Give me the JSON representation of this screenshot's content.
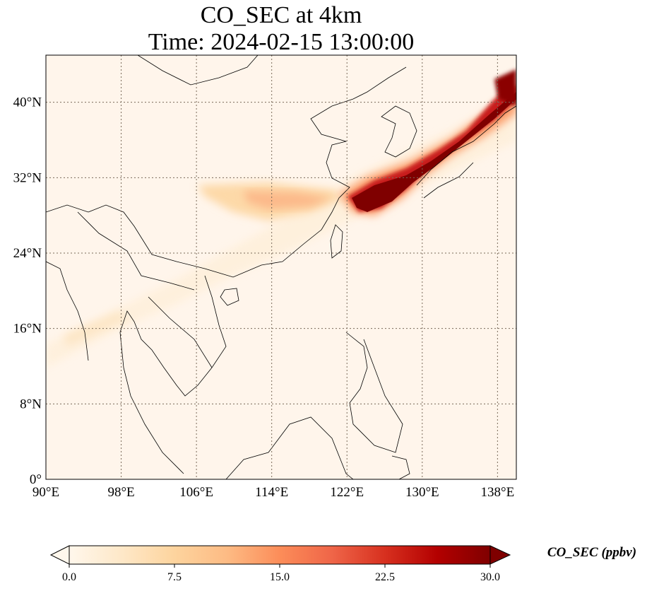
{
  "title": {
    "line1": "CO_SEC at 4km",
    "line2": "Time: 2024-02-15 13:00:00"
  },
  "map": {
    "lon_range": [
      90,
      140
    ],
    "lat_range": [
      0,
      45
    ],
    "lon_ticks": [
      90,
      98,
      106,
      114,
      122,
      130,
      138
    ],
    "lon_tick_labels": [
      "90°E",
      "98°E",
      "106°E",
      "114°E",
      "122°E",
      "130°E",
      "138°E"
    ],
    "lat_ticks": [
      0,
      8,
      16,
      24,
      32,
      40
    ],
    "lat_tick_labels": [
      "0°",
      "8°N",
      "16°N",
      "24°N",
      "32°N",
      "40°N"
    ],
    "gridlines": true,
    "background_color": "#fff5eb"
  },
  "colorbar": {
    "label": "CO_SEC (ppbv)",
    "ticks": [
      0.0,
      7.5,
      15.0,
      22.5,
      30.0
    ],
    "tick_labels": [
      "0.0",
      "7.5",
      "15.0",
      "22.5",
      "30.0"
    ],
    "range": [
      0,
      30
    ],
    "extend": "both",
    "colormap": "OrRd",
    "stops": [
      "#fff7ec",
      "#fee8c8",
      "#fdd49e",
      "#fdbb84",
      "#fc8d59",
      "#ef6548",
      "#d7301f",
      "#b30000",
      "#7f0000"
    ]
  }
}
